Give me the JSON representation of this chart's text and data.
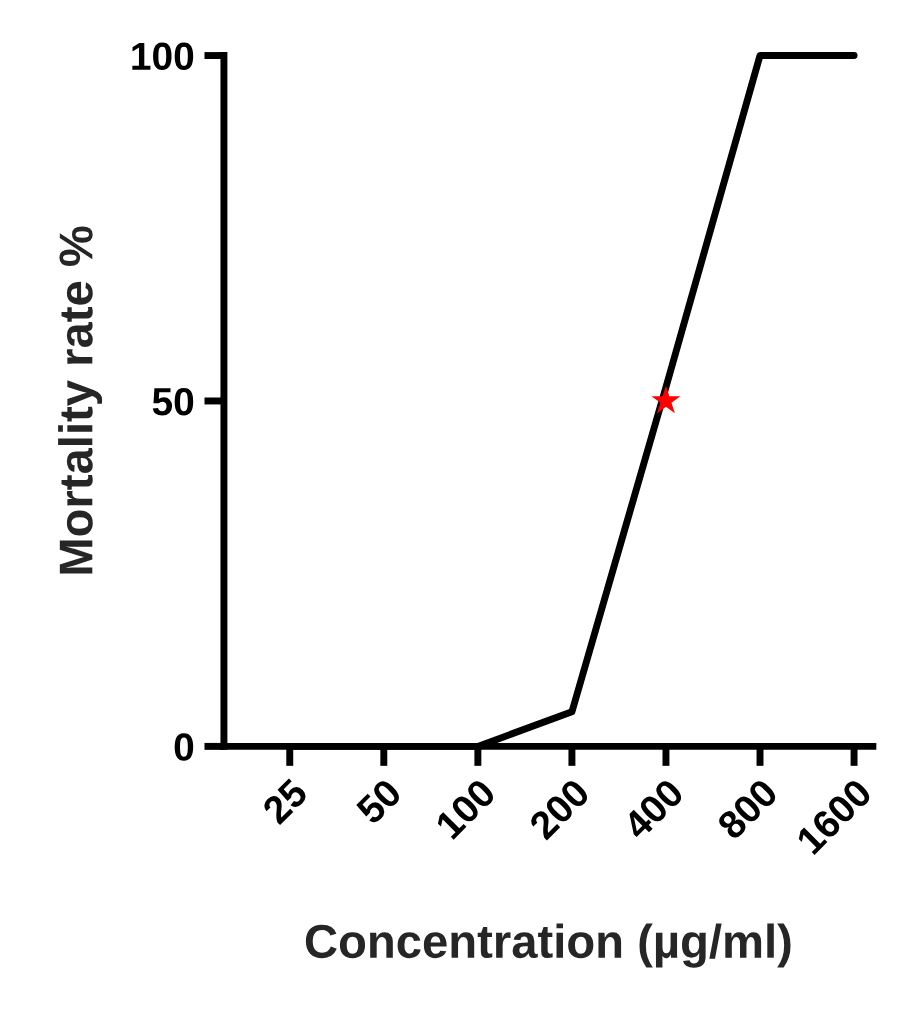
{
  "chart_data": {
    "type": "line",
    "xlabel": "Concentration (µg/ml)",
    "ylabel": "Mortality rate %",
    "categories": [
      "25",
      "50",
      "100",
      "200",
      "400",
      "800",
      "1600"
    ],
    "series": [
      {
        "color": "#000000",
        "values": [
          0,
          0,
          0,
          5,
          52,
          100,
          100
        ]
      },
      {
        "type": "scatter",
        "color": "#ff0000",
        "marker": "star",
        "x": [
          "400"
        ],
        "values": [
          50
        ]
      }
    ],
    "ylim": [
      0,
      100
    ],
    "yticks": [
      0,
      50,
      100
    ],
    "grid": false,
    "legend": false,
    "marker": "none"
  }
}
